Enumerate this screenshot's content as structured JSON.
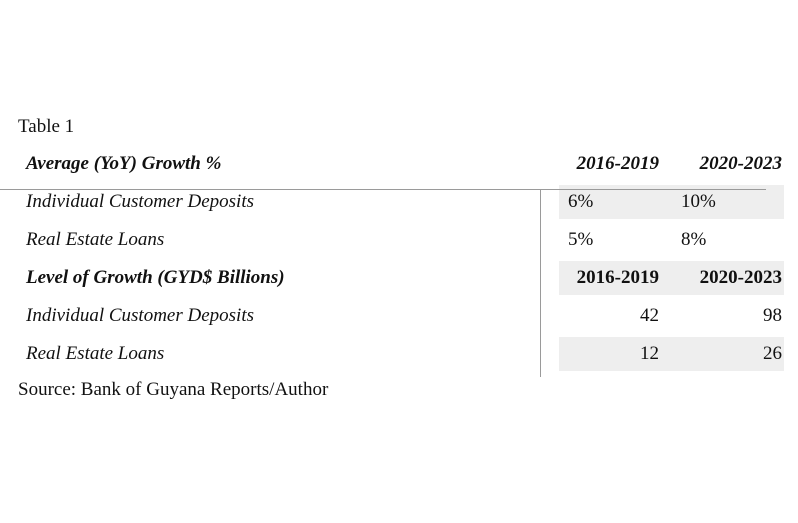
{
  "caption": "Table 1",
  "table": {
    "header": {
      "label": "Average (YoY) Growth %",
      "col1": "2016-2019",
      "col2": "2020-2023"
    },
    "growth_rows": [
      {
        "label": "Individual Customer Deposits",
        "col1": "6%",
        "col2": "10%"
      },
      {
        "label": "Real Estate Loans",
        "col1": "5%",
        "col2": "8%"
      }
    ],
    "level_header": {
      "label": "Level of Growth (GYD$ Billions)",
      "col1": "2016-2019",
      "col2": "2020-2023"
    },
    "level_rows": [
      {
        "label": "Individual Customer Deposits",
        "col1": "42",
        "col2": "98"
      },
      {
        "label": "Real Estate Loans",
        "col1": "12",
        "col2": "26"
      }
    ]
  },
  "source": "Source: Bank of Guyana Reports/Author"
}
